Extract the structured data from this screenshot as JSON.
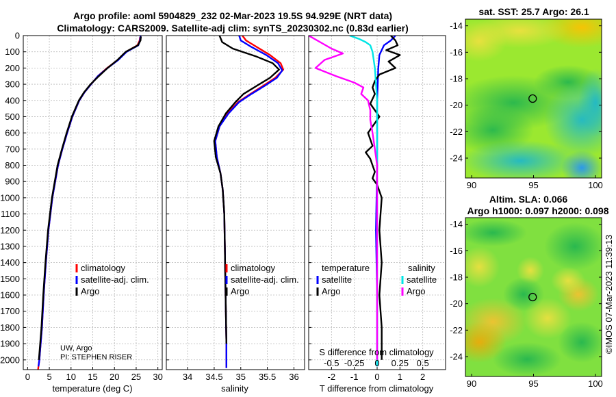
{
  "header": {
    "title_line1": "Argo profile: aoml 5904829_232 02-Mar-2023 19.5S 94.929E (NRT data)",
    "title_line2": "Climatology: CARS2009. Satellite-adj clim: synTS_20230302.nc (0.83d earlier)"
  },
  "colors": {
    "climatology": "#ff0000",
    "satellite_adj": "#0000ff",
    "argo": "#000000",
    "sat_temperature": "#0000ff",
    "sat_salinity": "#00e5e5",
    "argo_salinity": "#ff00ff"
  },
  "credits": {
    "uw": "UW, Argo",
    "pi": "PI: STEPHEN RISER",
    "imos": "©IMOS 07-Mar-2023 11:39:13"
  },
  "chart_data": [
    {
      "type": "line",
      "name": "temperature-profile",
      "xlabel": "temperature (deg C)",
      "xlim": [
        -1,
        31
      ],
      "xticks": [
        0,
        5,
        10,
        15,
        20,
        25,
        30
      ],
      "ylim": [
        2060,
        0
      ],
      "yticks": [
        0,
        100,
        200,
        300,
        400,
        500,
        600,
        700,
        800,
        900,
        1000,
        1100,
        1200,
        1300,
        1400,
        1500,
        1600,
        1700,
        1800,
        1900,
        2000
      ],
      "legend": [
        "climatology",
        "satellite-adj. clim.",
        "Argo"
      ],
      "series": [
        {
          "name": "climatology",
          "x": [
            25.9,
            25.8,
            25.3,
            22.7,
            20.8,
            18.3,
            16.2,
            14.6,
            13.1,
            11.9,
            10.3,
            9.1,
            8.0,
            7.0,
            5.7,
            4.8,
            4.2,
            3.7,
            3.3,
            3.0,
            2.7,
            2.5,
            2.4
          ],
          "y": [
            10,
            30,
            60,
            100,
            150,
            200,
            250,
            300,
            350,
            400,
            500,
            600,
            700,
            800,
            1000,
            1200,
            1400,
            1600,
            1800,
            1900,
            2000,
            2040,
            2060
          ]
        },
        {
          "name": "satellite-adj. clim.",
          "x": [
            26.0,
            25.9,
            25.5,
            22.8,
            20.9,
            18.4,
            16.2,
            14.6,
            13.1,
            11.9,
            10.3,
            9.1,
            8.0,
            7.0,
            5.7,
            4.8,
            4.2,
            3.7,
            3.3,
            3.0,
            2.7,
            2.5
          ],
          "y": [
            0,
            30,
            60,
            100,
            150,
            200,
            250,
            300,
            350,
            400,
            500,
            600,
            700,
            800,
            1000,
            1200,
            1400,
            1600,
            1800,
            1900,
            2000,
            2040
          ]
        },
        {
          "name": "Argo",
          "x": [
            26.1,
            26.0,
            25.4,
            22.6,
            20.7,
            18.4,
            16.4,
            14.5,
            13.0,
            11.8,
            10.2,
            9.0,
            7.9,
            6.9,
            5.6,
            4.7,
            4.1,
            3.6,
            3.2,
            2.9,
            2.6
          ],
          "y": [
            5,
            30,
            60,
            100,
            150,
            200,
            250,
            300,
            350,
            400,
            500,
            600,
            700,
            800,
            1000,
            1200,
            1400,
            1600,
            1800,
            1900,
            2000
          ]
        }
      ]
    },
    {
      "type": "line",
      "name": "salinity-profile",
      "xlabel": "salinity",
      "xlim": [
        33.6,
        36.2
      ],
      "xticks": [
        34,
        34.5,
        35,
        35.5,
        36
      ],
      "xticklabels": [
        "34",
        "34.5",
        "35",
        "35.5",
        "36"
      ],
      "ylim": [
        2060,
        0
      ],
      "legend": [
        "climatology",
        "satellite-adj. clim.",
        "Argo"
      ],
      "series": [
        {
          "name": "climatology",
          "x": [
            35.03,
            35.1,
            35.3,
            35.55,
            35.75,
            35.8,
            35.65,
            35.42,
            35.18,
            34.95,
            34.75,
            34.6,
            34.52,
            34.55,
            34.62,
            34.66,
            34.69,
            34.7,
            34.71,
            34.72,
            34.73,
            34.73
          ],
          "y": [
            0,
            30,
            70,
            120,
            170,
            210,
            260,
            310,
            360,
            410,
            480,
            560,
            650,
            750,
            850,
            950,
            1100,
            1300,
            1500,
            1700,
            1900,
            2050
          ]
        },
        {
          "name": "satellite-adj. clim.",
          "x": [
            34.97,
            35.0,
            35.2,
            35.48,
            35.7,
            35.78,
            35.68,
            35.45,
            35.2,
            34.97,
            34.77,
            34.6,
            34.52,
            34.55,
            34.62,
            34.66,
            34.69,
            34.7,
            34.71,
            34.72,
            34.73,
            34.73
          ],
          "y": [
            0,
            30,
            70,
            120,
            170,
            215,
            260,
            310,
            360,
            410,
            480,
            560,
            650,
            750,
            850,
            950,
            1100,
            1300,
            1500,
            1700,
            1900,
            2050
          ]
        },
        {
          "name": "Argo",
          "x": [
            34.6,
            34.65,
            34.85,
            35.3,
            35.6,
            35.72,
            35.55,
            35.3,
            35.05,
            34.9,
            34.72,
            34.58,
            34.5,
            34.53,
            34.62,
            34.66,
            34.69,
            34.7,
            34.71,
            34.72,
            34.73
          ],
          "y": [
            0,
            40,
            80,
            130,
            170,
            210,
            260,
            310,
            360,
            410,
            480,
            560,
            650,
            750,
            850,
            950,
            1100,
            1300,
            1500,
            1700,
            1900
          ]
        }
      ]
    },
    {
      "type": "line",
      "name": "difference-from-climatology",
      "xlabel": "T difference from climatology",
      "xlabel_top": "S difference from climatology",
      "xlim": [
        -3,
        3
      ],
      "xticks": [
        -2,
        -1,
        0,
        1,
        2
      ],
      "xticklabels_bottom": [
        "-2",
        "-1",
        "0",
        "1",
        "2"
      ],
      "xticks_salinity": [
        -0.5,
        -0.25,
        0,
        0.25,
        0.5
      ],
      "xticklabels_salinity": [
        "-0.5",
        "-0.25",
        "0",
        "0.25",
        "0.5"
      ],
      "ylim": [
        2060,
        0
      ],
      "legend_titles": [
        "temperature",
        "salinity"
      ],
      "legend": [
        {
          "group": "temperature",
          "label": "satellite"
        },
        {
          "group": "temperature",
          "label": "Argo"
        },
        {
          "group": "salinity",
          "label": "satellite"
        },
        {
          "group": "salinity",
          "label": "Argo"
        }
      ],
      "series": [
        {
          "name": "temperature satellite",
          "x": [
            0.8,
            0.6,
            0.3,
            0.1,
            0.05,
            0.0,
            0.0,
            -0.05,
            0.0,
            0.0,
            0.0
          ],
          "y": [
            0,
            30,
            60,
            120,
            200,
            400,
            800,
            1200,
            1600,
            1900,
            2040
          ]
        },
        {
          "name": "temperature Argo",
          "x": [
            0.6,
            0.8,
            0.9,
            0.4,
            1.0,
            0.5,
            0.8,
            0.1,
            -0.1,
            -0.2,
            -0.1,
            -0.3,
            0.1,
            -0.4,
            -0.2,
            -0.5,
            -0.3,
            -0.2,
            -0.1,
            -0.2,
            0.0,
            0.2,
            0.1,
            0.2,
            0.1,
            0.2,
            0.2
          ],
          "y": [
            0,
            30,
            60,
            90,
            120,
            160,
            200,
            240,
            280,
            320,
            360,
            420,
            500,
            600,
            680,
            720,
            760,
            800,
            840,
            880,
            920,
            1000,
            1200,
            1400,
            1600,
            1800,
            2000
          ]
        },
        {
          "name": "salinity satellite",
          "x": [
            -1.2,
            -0.8,
            -0.5,
            -0.3,
            -0.2,
            -0.1,
            0.0,
            0.0,
            0.0,
            0.0,
            0.0
          ],
          "y": [
            0,
            20,
            40,
            60,
            100,
            200,
            400,
            800,
            1200,
            1600,
            2040
          ]
        },
        {
          "name": "salinity Argo",
          "x": [
            -3.0,
            -2.5,
            -2.0,
            -1.5,
            -2.3,
            -2.7,
            -1.8,
            -1.0,
            -0.6,
            -0.7,
            -0.4,
            -0.3,
            -0.3,
            -0.2,
            -0.1,
            0.0,
            0.0,
            0.0,
            0.0
          ],
          "y": [
            0,
            40,
            80,
            110,
            150,
            200,
            250,
            290,
            320,
            360,
            400,
            460,
            520,
            600,
            700,
            800,
            1200,
            1600,
            2000
          ]
        }
      ]
    },
    {
      "type": "heatmap",
      "name": "sst-map",
      "title": "sat. SST: 25.7 Argo: 26.1",
      "xlim": [
        89.5,
        100.5
      ],
      "ylim": [
        -25.5,
        -13.5
      ],
      "xticks": [
        90,
        95,
        100
      ],
      "yticks": [
        -14,
        -16,
        -18,
        -20,
        -22,
        -24
      ],
      "marker": {
        "lon": 94.929,
        "lat": -19.5
      }
    },
    {
      "type": "heatmap",
      "name": "sla-map",
      "title_line1": "Altim. SLA: 0.066",
      "title_line2": "Argo h1000: 0.097 h2000: 0.098",
      "xlim": [
        89.5,
        100.5
      ],
      "ylim": [
        -25.5,
        -13.5
      ],
      "xticks": [
        90,
        95,
        100
      ],
      "yticks": [
        -14,
        -16,
        -18,
        -20,
        -22,
        -24
      ],
      "marker": {
        "lon": 94.929,
        "lat": -19.5
      }
    }
  ]
}
